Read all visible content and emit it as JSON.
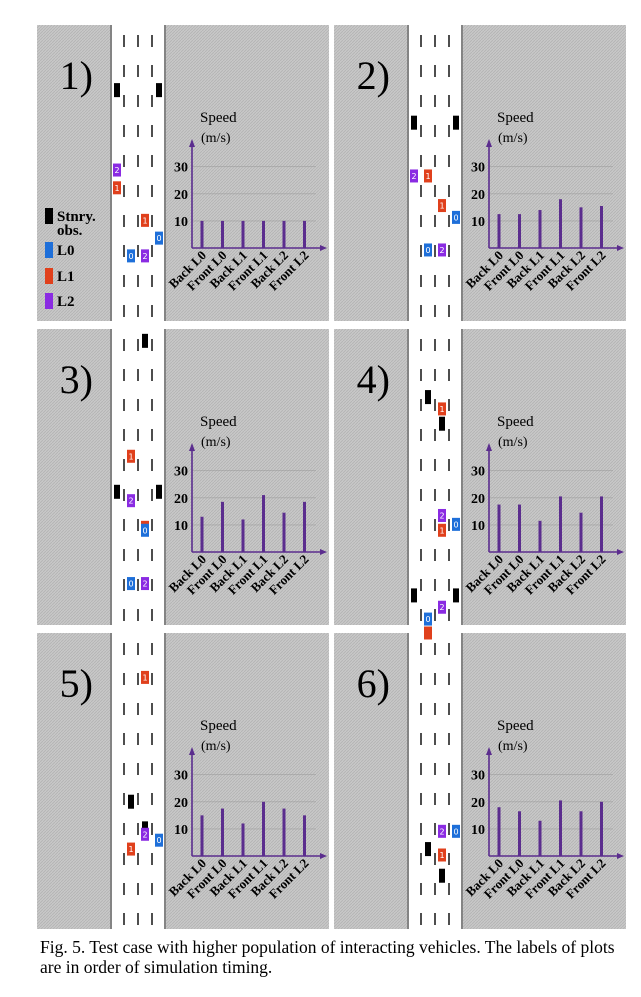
{
  "figure": {
    "caption": "Fig. 5.   Test case with higher population of interacting vehicles. The labels of plots are in order of simulation timing."
  },
  "colors": {
    "stationary": "#000000",
    "L0": "#1e6fd9",
    "L1": "#e0401c",
    "L2": "#8a2be2",
    "bar": "#5b2d8e",
    "axis": "#5b2d8e"
  },
  "legend": {
    "items": [
      {
        "label": "Stnry.",
        "label2": "obs.",
        "color": "#000000"
      },
      {
        "label": "L0",
        "color": "#1e6fd9"
      },
      {
        "label": "L1",
        "color": "#e0401c"
      },
      {
        "label": "L2",
        "color": "#8a2be2"
      }
    ]
  },
  "chart_data": [
    {
      "type": "bar",
      "panel_label": "1)",
      "ylabel": "Speed",
      "yunit": "(m/s)",
      "yticks": [
        10,
        20,
        30
      ],
      "ylim": [
        0,
        38
      ],
      "categories": [
        "Back L0",
        "Front L0",
        "Back L1",
        "Front L1",
        "Back L2",
        "Front L2"
      ],
      "values": [
        10,
        10,
        10,
        10,
        10,
        10
      ]
    },
    {
      "type": "bar",
      "panel_label": "2)",
      "ylabel": "Speed",
      "yunit": "(m/s)",
      "yticks": [
        10,
        20,
        30
      ],
      "ylim": [
        0,
        38
      ],
      "categories": [
        "Back L0",
        "Front L0",
        "Back L1",
        "Front L1",
        "Back L2",
        "Front L2"
      ],
      "values": [
        12.5,
        12.5,
        14,
        18,
        15,
        15.5
      ]
    },
    {
      "type": "bar",
      "panel_label": "3)",
      "ylabel": "Speed",
      "yunit": "(m/s)",
      "yticks": [
        10,
        20,
        30
      ],
      "ylim": [
        0,
        38
      ],
      "categories": [
        "Back L0",
        "Front L0",
        "Back L1",
        "Front L1",
        "Back L2",
        "Front L2"
      ],
      "values": [
        13,
        18.5,
        12,
        21,
        14.5,
        18.5
      ]
    },
    {
      "type": "bar",
      "panel_label": "4)",
      "ylabel": "Speed",
      "yunit": "(m/s)",
      "yticks": [
        10,
        20,
        30
      ],
      "ylim": [
        0,
        38
      ],
      "categories": [
        "Back L0",
        "Front L0",
        "Back L1",
        "Front L1",
        "Back L2",
        "Front L2"
      ],
      "values": [
        17.5,
        17.5,
        11.5,
        20.5,
        14.5,
        20.5
      ]
    },
    {
      "type": "bar",
      "panel_label": "5)",
      "ylabel": "Speed",
      "yunit": "(m/s)",
      "yticks": [
        10,
        20,
        30
      ],
      "ylim": [
        0,
        38
      ],
      "categories": [
        "Back L0",
        "Front L0",
        "Back L1",
        "Front L1",
        "Back L2",
        "Front L2"
      ],
      "values": [
        15,
        17.5,
        12,
        20,
        17.5,
        15
      ]
    },
    {
      "type": "bar",
      "panel_label": "6)",
      "ylabel": "Speed",
      "yunit": "(m/s)",
      "yticks": [
        10,
        20,
        30
      ],
      "ylim": [
        0,
        38
      ],
      "categories": [
        "Back L0",
        "Front L0",
        "Back L1",
        "Front L1",
        "Back L2",
        "Front L2"
      ],
      "values": [
        18,
        16.5,
        13,
        20.5,
        16.5,
        20
      ]
    }
  ],
  "vehicles": [
    [
      {
        "t": "S",
        "lane": 0,
        "y": 0.22
      },
      {
        "t": "S",
        "lane": 3,
        "y": 0.22
      },
      {
        "t": "L2",
        "lane": 0,
        "y": 0.49,
        "num": "2"
      },
      {
        "t": "L1",
        "lane": 0,
        "y": 0.55,
        "num": "1"
      },
      {
        "t": "L1",
        "lane": 2,
        "y": 0.66,
        "num": "1"
      },
      {
        "t": "L0",
        "lane": 3,
        "y": 0.72,
        "num": "0"
      },
      {
        "t": "L0",
        "lane": 1,
        "y": 0.78,
        "num": "0"
      },
      {
        "t": "L2",
        "lane": 2,
        "y": 0.78,
        "num": "2"
      }
    ],
    [
      {
        "t": "S",
        "lane": 0,
        "y": 0.33
      },
      {
        "t": "S",
        "lane": 3,
        "y": 0.33
      },
      {
        "t": "L2",
        "lane": 0,
        "y": 0.51,
        "num": "2"
      },
      {
        "t": "L1",
        "lane": 1,
        "y": 0.51,
        "num": "1"
      },
      {
        "t": "L1",
        "lane": 2,
        "y": 0.61,
        "num": "1"
      },
      {
        "t": "L0",
        "lane": 3,
        "y": 0.65,
        "num": "0"
      },
      {
        "t": "L0",
        "lane": 1,
        "y": 0.76,
        "num": "0"
      },
      {
        "t": "L2",
        "lane": 2,
        "y": 0.76,
        "num": "2"
      }
    ],
    [
      {
        "t": "S",
        "lane": 2,
        "y": 0.04
      },
      {
        "t": "L1",
        "lane": 1,
        "y": 0.43,
        "num": "1"
      },
      {
        "t": "S",
        "lane": 0,
        "y": 0.55
      },
      {
        "t": "S",
        "lane": 3,
        "y": 0.55
      },
      {
        "t": "L2",
        "lane": 1,
        "y": 0.58,
        "num": "2"
      },
      {
        "t": "L1",
        "lane": 2,
        "y": 0.67,
        "num": "1"
      },
      {
        "t": "L0",
        "lane": 2,
        "y": 0.68,
        "num": "0"
      },
      {
        "t": "L0",
        "lane": 1,
        "y": 0.86,
        "num": "0"
      },
      {
        "t": "L2",
        "lane": 2,
        "y": 0.86,
        "num": "2"
      }
    ],
    [
      {
        "t": "S",
        "lane": 1,
        "y": 0.23
      },
      {
        "t": "L1",
        "lane": 2,
        "y": 0.27,
        "num": "1"
      },
      {
        "t": "S",
        "lane": 2,
        "y": 0.32
      },
      {
        "t": "L2",
        "lane": 2,
        "y": 0.63,
        "num": "2"
      },
      {
        "t": "L0",
        "lane": 3,
        "y": 0.66,
        "num": "0"
      },
      {
        "t": "L1",
        "lane": 2,
        "y": 0.68,
        "num": "1"
      },
      {
        "t": "S",
        "lane": 0,
        "y": 0.9
      },
      {
        "t": "S",
        "lane": 3,
        "y": 0.9
      },
      {
        "t": "L2",
        "lane": 2,
        "y": 0.94,
        "num": "2"
      },
      {
        "t": "L0",
        "lane": 1,
        "y": 0.98,
        "num": "0"
      }
    ],
    [
      {
        "t": "L1",
        "lane": 2,
        "y": 0.15,
        "num": "1"
      },
      {
        "t": "S",
        "lane": 1,
        "y": 0.57
      },
      {
        "t": "S",
        "lane": 2,
        "y": 0.66
      },
      {
        "t": "L2",
        "lane": 2,
        "y": 0.68,
        "num": "2"
      },
      {
        "t": "L0",
        "lane": 3,
        "y": 0.7,
        "num": "0"
      },
      {
        "t": "L1",
        "lane": 1,
        "y": 0.73,
        "num": "1"
      }
    ],
    [
      {
        "t": "L1",
        "lane": 1,
        "y": 0.0,
        "num": ""
      },
      {
        "t": "L2",
        "lane": 2,
        "y": 0.67,
        "num": "2"
      },
      {
        "t": "L0",
        "lane": 3,
        "y": 0.67,
        "num": "0"
      },
      {
        "t": "S",
        "lane": 1,
        "y": 0.73
      },
      {
        "t": "L1",
        "lane": 2,
        "y": 0.75,
        "num": "1"
      },
      {
        "t": "S",
        "lane": 2,
        "y": 0.82
      }
    ]
  ]
}
